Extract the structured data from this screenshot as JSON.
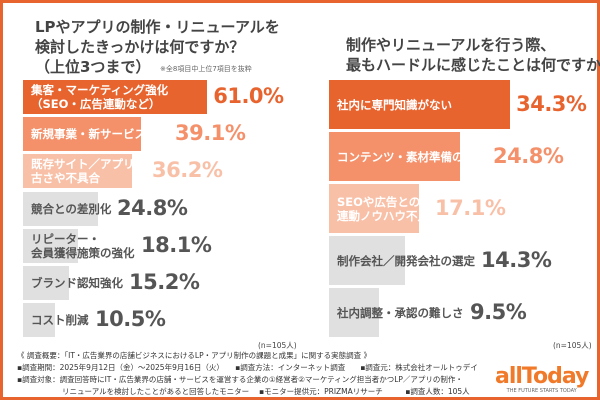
{
  "chart_data": [
    {
      "type": "bar",
      "orientation": "horizontal",
      "title": "LPやアプリの制作・リニューアルを\n検討したきっかけは何ですか？\n（上位3つまで）",
      "note": "※全8項目中上位7項目を抜粋",
      "sample": "(n=105人)",
      "categories": [
        "集客・マーケティング強化\n（SEO・広告連動など）",
        "新規事業・新サービス開始",
        "既存サイト／アプリの\n古さや不具合",
        "競合との差別化",
        "リピーター・\n会員獲得施策の強化",
        "ブランド認知強化",
        "コスト削減"
      ],
      "values": [
        61.0,
        39.1,
        36.2,
        24.8,
        18.1,
        15.2,
        10.5
      ],
      "labels": [
        "61.0%",
        "39.1%",
        "36.2%",
        "24.8%",
        "18.1%",
        "15.2%",
        "10.5%"
      ],
      "unit": "%"
    },
    {
      "type": "bar",
      "orientation": "horizontal",
      "title": "制作やリニューアルを行う際、\n最もハードルに感じたことは何ですか？",
      "sample": "(n=105人)",
      "categories": [
        "社内に専門知識がない",
        "コンテンツ・素材準備の手間",
        "SEOや広告との\n連動ノウハウ不足",
        "制作会社／開発会社の選定",
        "社内調整・承認の難しさ"
      ],
      "values": [
        34.3,
        24.8,
        17.1,
        14.3,
        9.5
      ],
      "labels": [
        "34.3%",
        "24.8%",
        "17.1%",
        "14.3%",
        "9.5%"
      ],
      "unit": "%"
    }
  ],
  "colors": {
    "rank1": "#e8642f",
    "rank2": "#f4916b",
    "rank3": "#f9c0a8",
    "other": "#e0e0e0",
    "frame": "#e8642f"
  },
  "footer": [
    "《 調査概要：「IT・広告業界の店舗ビジネスにおけるLP・アプリ制作の課題と成果」に関する実態調査 》",
    "▪調査期間：2025年9月12日（金）～2025年9月16日（火）　　▪調査方法：インターネット調査　　▪調査元：株式会社オールトゥデイ",
    "▪調査対象：調査回答時にIT・広告業界の店舗・サービスを運営する企業の①経営者②マーケティング担当者かつLP／アプリの制作・",
    "　　　　　　リニューアルを検討したことがあると回答したモニター　 ▪モニター提供元：PRIZMAリサーチ　　　▪調査人数：105人"
  ],
  "logo": {
    "name": "allToday",
    "tagline": "THE FUTURE STARTS TODAY"
  }
}
